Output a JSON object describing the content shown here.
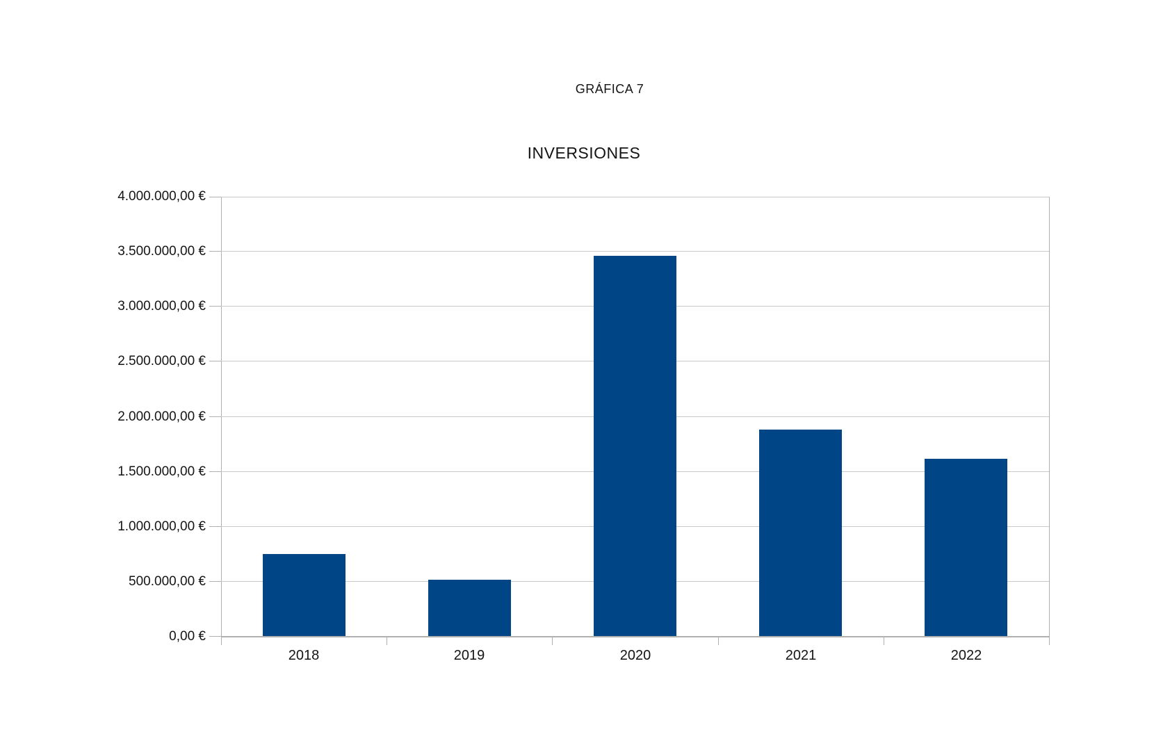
{
  "caption": "GRÁFICA 7",
  "chart_data": {
    "type": "bar",
    "title": "INVERSIONES",
    "categories": [
      "2018",
      "2019",
      "2020",
      "2021",
      "2022"
    ],
    "values": [
      750000,
      520000,
      3460000,
      1880000,
      1620000
    ],
    "series": [
      {
        "name": "INVERSIONES",
        "values": [
          750000,
          520000,
          3460000,
          1880000,
          1620000
        ]
      }
    ],
    "xlabel": "",
    "ylabel": "",
    "ylim": [
      0,
      4000000
    ],
    "ytick_step": 500000,
    "ytick_labels": [
      "0,00 €",
      "500.000,00 €",
      "1.000.000,00 €",
      "1.500.000,00 €",
      "2.000.000,00 €",
      "2.500.000,00 €",
      "3.000.000,00 €",
      "3.500.000,00 €",
      "4.000.000,00 €"
    ],
    "grid": true,
    "legend": "none",
    "bar_color": "#004586",
    "grid_color": "#c9c9c9",
    "axis_color": "#b0b0b0",
    "text_color": "#141414"
  }
}
